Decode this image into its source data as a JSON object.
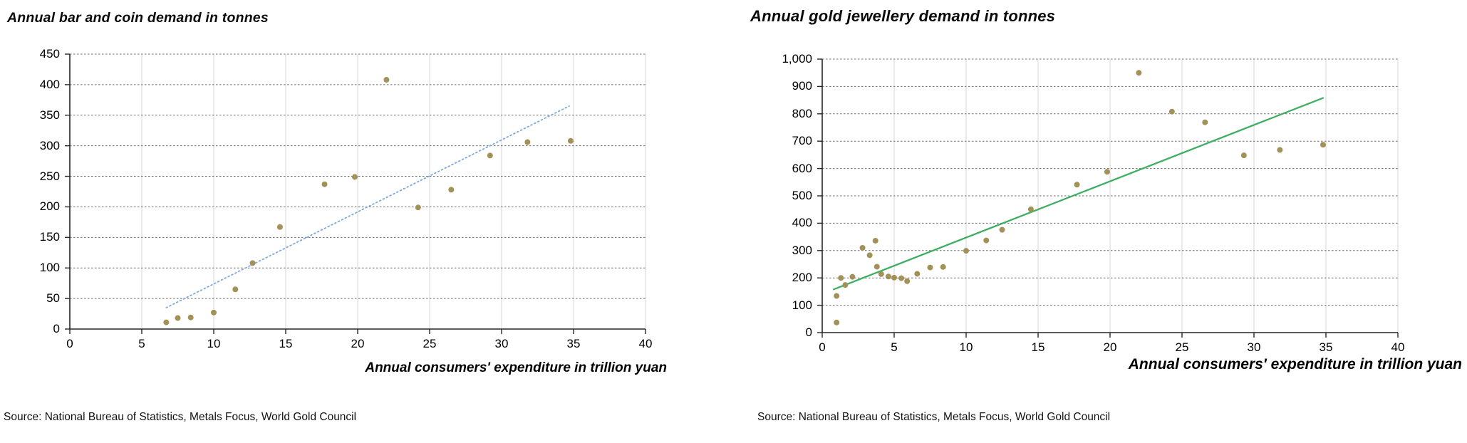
{
  "figure": {
    "background": "#ffffff",
    "text_color": "#000000",
    "axis_color": "#262626",
    "h_gridline_color": "#6e6e6e",
    "v_gridline_color": "#d5d5d5"
  },
  "chart_data": [
    {
      "type": "scatter",
      "title": "Annual bar and coin demand in tonnes",
      "xlabel": "Annual consumers' expenditure in trillion yuan",
      "source": "Source: National Bureau of Statistics, Metals Focus, World Gold Council",
      "legend": "none",
      "xlim": [
        0,
        40
      ],
      "ylim": [
        0,
        450
      ],
      "xtick_labels": [
        "0",
        "5",
        "10",
        "15",
        "20",
        "25",
        "30",
        "35",
        "40"
      ],
      "xtick_values": [
        0,
        5,
        10,
        15,
        20,
        25,
        30,
        35,
        40
      ],
      "ytick_labels": [
        "0",
        "50",
        "100",
        "150",
        "200",
        "250",
        "300",
        "350",
        "400",
        "450"
      ],
      "ytick_values": [
        0,
        50,
        100,
        150,
        200,
        250,
        300,
        350,
        400,
        450
      ],
      "grid": {
        "horizontal": "dashed",
        "vertical": "solid"
      },
      "point_color": "#a29258",
      "points": [
        [
          6.7,
          11
        ],
        [
          7.5,
          18
        ],
        [
          8.4,
          19
        ],
        [
          10.0,
          27
        ],
        [
          11.5,
          65
        ],
        [
          12.7,
          108
        ],
        [
          14.6,
          167
        ],
        [
          17.7,
          237
        ],
        [
          19.8,
          249
        ],
        [
          22.0,
          408
        ],
        [
          24.2,
          199
        ],
        [
          26.5,
          228
        ],
        [
          29.2,
          284
        ],
        [
          31.8,
          306
        ],
        [
          34.8,
          308
        ]
      ],
      "trendline": {
        "style": "dotted",
        "color": "#7fa7d9",
        "from": [
          6.7,
          35
        ],
        "to": [
          34.7,
          365
        ]
      }
    },
    {
      "type": "scatter",
      "title": "Annual gold jewellery demand in tonnes",
      "xlabel": "Annual consumers' expenditure in trillion yuan",
      "source": "Source: National Bureau of Statistics, Metals Focus, World Gold Council",
      "legend": "none",
      "xlim": [
        0,
        40
      ],
      "ylim": [
        0,
        1000
      ],
      "xtick_labels": [
        "0",
        "5",
        "10",
        "15",
        "20",
        "25",
        "30",
        "35",
        "40"
      ],
      "xtick_values": [
        0,
        5,
        10,
        15,
        20,
        25,
        30,
        35,
        40
      ],
      "ytick_labels": [
        "0",
        "100",
        "200",
        "300",
        "400",
        "500",
        "600",
        "700",
        "800",
        "900",
        "1,000"
      ],
      "ytick_values": [
        0,
        100,
        200,
        300,
        400,
        500,
        600,
        700,
        800,
        900,
        1000
      ],
      "grid": {
        "horizontal": "dashed",
        "vertical": "solid"
      },
      "point_color": "#a29258",
      "points": [
        [
          1.0,
          37
        ],
        [
          1.0,
          134
        ],
        [
          1.3,
          200
        ],
        [
          1.6,
          174
        ],
        [
          2.1,
          204
        ],
        [
          2.8,
          310
        ],
        [
          3.3,
          283
        ],
        [
          3.7,
          336
        ],
        [
          3.8,
          241
        ],
        [
          4.1,
          214
        ],
        [
          4.6,
          205
        ],
        [
          5.0,
          201
        ],
        [
          5.5,
          199
        ],
        [
          5.9,
          188
        ],
        [
          6.6,
          215
        ],
        [
          7.5,
          238
        ],
        [
          8.4,
          240
        ],
        [
          10.0,
          299
        ],
        [
          11.4,
          337
        ],
        [
          12.5,
          376
        ],
        [
          14.5,
          451
        ],
        [
          17.7,
          541
        ],
        [
          19.8,
          588
        ],
        [
          22.0,
          950
        ],
        [
          24.3,
          808
        ],
        [
          26.6,
          769
        ],
        [
          29.3,
          648
        ],
        [
          31.8,
          668
        ],
        [
          34.8,
          687
        ]
      ],
      "trendline": {
        "style": "solid",
        "color": "#3fae62",
        "from": [
          0.8,
          158
        ],
        "to": [
          34.8,
          858
        ]
      }
    }
  ]
}
